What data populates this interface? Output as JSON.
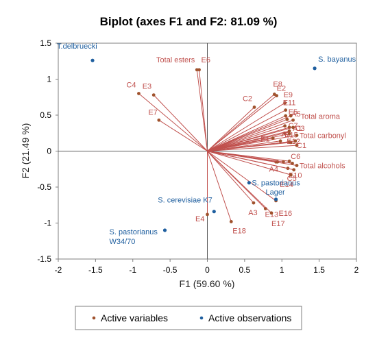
{
  "chart_data": {
    "type": "scatter",
    "title": "Biplot (axes F1 and F2: 81.09 %)",
    "xlabel": "F1 (59.60 %)",
    "ylabel": "F2 (21.49 %)",
    "xlim": [
      -2,
      2
    ],
    "ylim": [
      -1.5,
      1.5
    ],
    "xticks": [
      "-2",
      "-1.5",
      "-1",
      "-0.5",
      "0",
      "0.5",
      "1",
      "1.5",
      "2"
    ],
    "yticks": [
      "1.5",
      "1",
      "0.5",
      "0",
      "-0.5",
      "-1",
      "-1.5"
    ],
    "legend": [
      "Active variables",
      "Active observations"
    ],
    "legend_position": "bottom",
    "colors": {
      "variables": "#c0504d",
      "variable_points": "#a0522d",
      "observations": "#1f5f9f",
      "axes": "#595959"
    },
    "variables": [
      {
        "name": "Total esters",
        "x": -0.14,
        "y": 1.13
      },
      {
        "name": "E6",
        "x": -0.11,
        "y": 1.13
      },
      {
        "name": "C4",
        "x": -0.92,
        "y": 0.8
      },
      {
        "name": "E3",
        "x": -0.72,
        "y": 0.78
      },
      {
        "name": "E7",
        "x": -0.65,
        "y": 0.43
      },
      {
        "name": "E8",
        "x": 0.9,
        "y": 0.79
      },
      {
        "name": "E2",
        "x": 0.93,
        "y": 0.77
      },
      {
        "name": "C2",
        "x": 0.63,
        "y": 0.61
      },
      {
        "name": "E9",
        "x": 1.04,
        "y": 0.67
      },
      {
        "name": "E11",
        "x": 1.05,
        "y": 0.57
      },
      {
        "name": "E5",
        "x": 1.05,
        "y": 0.49
      },
      {
        "name": "A5",
        "x": 1.12,
        "y": 0.49
      },
      {
        "name": "Total aroma",
        "x": 1.15,
        "y": 0.43
      },
      {
        "name": "C7",
        "x": 1.04,
        "y": 0.35
      },
      {
        "name": "A1",
        "x": 1.1,
        "y": 0.33
      },
      {
        "name": "C3",
        "x": 1.15,
        "y": 0.33
      },
      {
        "name": "A2",
        "x": 1.04,
        "y": 0.25
      },
      {
        "name": "E15",
        "x": 1.1,
        "y": 0.24
      },
      {
        "name": "Total carbonyl",
        "x": 1.2,
        "y": 0.22
      },
      {
        "name": "E1",
        "x": 0.88,
        "y": 0.18
      },
      {
        "name": "E12",
        "x": 1.12,
        "y": 0.12
      },
      {
        "name": "C1",
        "x": 1.2,
        "y": 0.08
      },
      {
        "name": "A4",
        "x": 0.92,
        "y": -0.15
      },
      {
        "name": "C6",
        "x": 1.1,
        "y": -0.14
      },
      {
        "name": "E10",
        "x": 1.08,
        "y": -0.24
      },
      {
        "name": "Total alcohols",
        "x": 1.2,
        "y": -0.2
      },
      {
        "name": "C5",
        "x": 1.16,
        "y": -0.26
      },
      {
        "name": "E14",
        "x": 1.12,
        "y": -0.33
      },
      {
        "name": "A3",
        "x": 0.62,
        "y": -0.72
      },
      {
        "name": "E13",
        "x": 0.78,
        "y": -0.8
      },
      {
        "name": "E16",
        "x": 0.92,
        "y": -0.69
      },
      {
        "name": "E17",
        "x": 0.86,
        "y": -0.86
      },
      {
        "name": "E4",
        "x": 0.0,
        "y": -0.88
      },
      {
        "name": "E18",
        "x": 0.32,
        "y": -0.98
      },
      {
        "name": "",
        "x": 1.1,
        "y": 0.13
      },
      {
        "name": "",
        "x": 1.18,
        "y": 0.14
      },
      {
        "name": "",
        "x": 0.98,
        "y": 0.14
      },
      {
        "name": "",
        "x": 0.94,
        "y": -0.15
      },
      {
        "name": "",
        "x": 1.02,
        "y": -0.15
      },
      {
        "name": "",
        "x": 1.14,
        "y": -0.17
      },
      {
        "name": "",
        "x": 1.07,
        "y": 0.44
      },
      {
        "name": "",
        "x": 1.1,
        "y": 0.28
      }
    ],
    "observations": [
      {
        "name": "T.delbruecki",
        "x": -1.54,
        "y": 1.26
      },
      {
        "name": "S. bayanus",
        "x": 1.44,
        "y": 1.15
      },
      {
        "name": "S. pastorianus",
        "x": 0.56,
        "y": -0.44
      },
      {
        "name": "Lager",
        "x": 0.92,
        "y": -0.67
      },
      {
        "name": "S. cerevisiae K7",
        "x": 0.09,
        "y": -0.84
      },
      {
        "name": "S. pastorianus\nW34/70",
        "x": -0.57,
        "y": -1.1
      }
    ]
  }
}
